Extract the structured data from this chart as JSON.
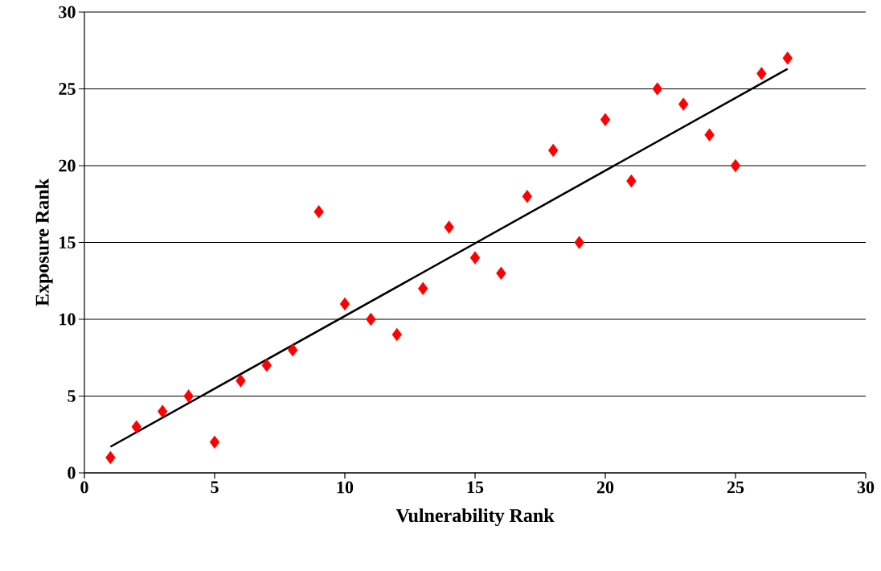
{
  "chart_data": {
    "type": "scatter",
    "xlabel": "Vulnerability Rank",
    "ylabel": "Exposure Rank",
    "xlim": [
      0,
      30
    ],
    "ylim": [
      0,
      30
    ],
    "xticks": [
      0,
      5,
      10,
      15,
      20,
      25,
      30
    ],
    "yticks": [
      0,
      5,
      10,
      15,
      20,
      25,
      30
    ],
    "grid": "y",
    "marker": "diamond",
    "series": [
      {
        "color": "#ff0000",
        "x": [
          1,
          2,
          3,
          4,
          5,
          6,
          7,
          8,
          9,
          10,
          11,
          12,
          13,
          14,
          15,
          16,
          17,
          18,
          19,
          20,
          21,
          22,
          23,
          24,
          25,
          26,
          27
        ],
        "values": [
          1,
          3,
          4,
          5,
          2,
          6,
          7,
          8,
          17,
          11,
          10,
          9,
          12,
          16,
          14,
          13,
          18,
          21,
          15,
          23,
          19,
          25,
          24,
          22,
          20,
          26,
          27
        ]
      },
      {
        "type": "line",
        "color": "#000000",
        "marker": "none",
        "line_style": "solid",
        "x": [
          1,
          27
        ],
        "values": [
          1.7,
          26.3
        ]
      }
    ]
  }
}
